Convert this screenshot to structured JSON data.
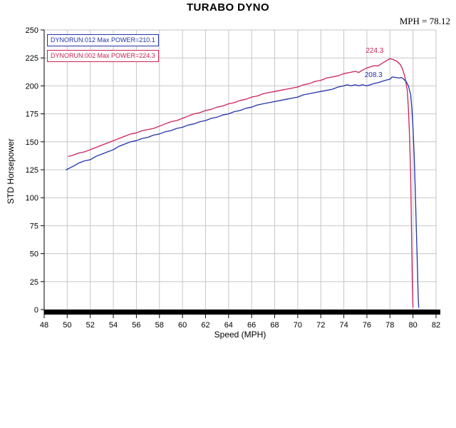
{
  "header": {
    "title": "TURABO DYNO",
    "readout": "MPH = 78.12"
  },
  "chart_data": {
    "type": "line",
    "title": "TURABO DYNO",
    "xlabel": "Speed (MPH)",
    "ylabel": "STD Horsepower",
    "xlim": [
      48,
      82
    ],
    "ylim": [
      0,
      250
    ],
    "x_ticks": [
      48,
      50,
      52,
      54,
      56,
      58,
      60,
      62,
      64,
      66,
      68,
      70,
      72,
      74,
      76,
      78,
      80,
      82
    ],
    "y_ticks": [
      0,
      25,
      50,
      75,
      100,
      125,
      150,
      175,
      200,
      225,
      250
    ],
    "grid": true,
    "grid_color": "#c6c6c6",
    "legend_position": "top-left-inside",
    "series": [
      {
        "name": "DYNORUN.012",
        "label": "DYNORUN.012  Max POWER=210.1",
        "max_power": 210.1,
        "color": "#2233aa",
        "points": [
          [
            49.9,
            125
          ],
          [
            50.5,
            128
          ],
          [
            51,
            131
          ],
          [
            51.5,
            133
          ],
          [
            52,
            134
          ],
          [
            52.5,
            137
          ],
          [
            53,
            139
          ],
          [
            53.5,
            141
          ],
          [
            54,
            143
          ],
          [
            54.5,
            146
          ],
          [
            55,
            148
          ],
          [
            55.5,
            150
          ],
          [
            56,
            151
          ],
          [
            56.5,
            153
          ],
          [
            57,
            154
          ],
          [
            57.5,
            156
          ],
          [
            58,
            157
          ],
          [
            58.5,
            159
          ],
          [
            59,
            160
          ],
          [
            59.5,
            162
          ],
          [
            60,
            163
          ],
          [
            60.5,
            165
          ],
          [
            61,
            166
          ],
          [
            61.5,
            168
          ],
          [
            62,
            169
          ],
          [
            62.5,
            171
          ],
          [
            63,
            172
          ],
          [
            63.5,
            174
          ],
          [
            64,
            175
          ],
          [
            64.5,
            177
          ],
          [
            65,
            178
          ],
          [
            65.5,
            180
          ],
          [
            66,
            181
          ],
          [
            66.5,
            183
          ],
          [
            67,
            184
          ],
          [
            67.5,
            185
          ],
          [
            68,
            186
          ],
          [
            68.5,
            187
          ],
          [
            69,
            188
          ],
          [
            69.5,
            189
          ],
          [
            70,
            190
          ],
          [
            70.5,
            192
          ],
          [
            71,
            193
          ],
          [
            71.5,
            194
          ],
          [
            72,
            195
          ],
          [
            72.5,
            196
          ],
          [
            73,
            197
          ],
          [
            73.5,
            199
          ],
          [
            74,
            200
          ],
          [
            74.3,
            201
          ],
          [
            74.6,
            200
          ],
          [
            75,
            201
          ],
          [
            75.3,
            200
          ],
          [
            75.6,
            201
          ],
          [
            76,
            200
          ],
          [
            76.3,
            201
          ],
          [
            76.6,
            202
          ],
          [
            77,
            203
          ],
          [
            77.3,
            204
          ],
          [
            77.6,
            205
          ],
          [
            78,
            206
          ],
          [
            78.2,
            208
          ],
          [
            78.5,
            207.5
          ],
          [
            78.8,
            207
          ],
          [
            79,
            207.5
          ],
          [
            79.2,
            206
          ],
          [
            79.4,
            204
          ],
          [
            79.6,
            200
          ],
          [
            79.8,
            192
          ],
          [
            79.9,
            180
          ],
          [
            80,
            163
          ],
          [
            80.1,
            138
          ],
          [
            80.2,
            105
          ],
          [
            80.3,
            68
          ],
          [
            80.4,
            32
          ],
          [
            80.45,
            12
          ],
          [
            80.5,
            2
          ]
        ]
      },
      {
        "name": "DYNORUN.002",
        "label": "DYNORUN.002  Max POWER=224.3",
        "max_power": 224.3,
        "color": "#cc2255",
        "points": [
          [
            50.1,
            137
          ],
          [
            50.5,
            138
          ],
          [
            51,
            140
          ],
          [
            51.5,
            141
          ],
          [
            52,
            143
          ],
          [
            52.5,
            145
          ],
          [
            53,
            147
          ],
          [
            53.5,
            149
          ],
          [
            54,
            151
          ],
          [
            54.5,
            153
          ],
          [
            55,
            155
          ],
          [
            55.5,
            157
          ],
          [
            56,
            158
          ],
          [
            56.5,
            160
          ],
          [
            57,
            161
          ],
          [
            57.5,
            162
          ],
          [
            58,
            164
          ],
          [
            58.5,
            166
          ],
          [
            59,
            168
          ],
          [
            59.5,
            169
          ],
          [
            60,
            171
          ],
          [
            60.5,
            173
          ],
          [
            61,
            175
          ],
          [
            61.5,
            176
          ],
          [
            62,
            178
          ],
          [
            62.5,
            179
          ],
          [
            63,
            181
          ],
          [
            63.5,
            182
          ],
          [
            64,
            184
          ],
          [
            64.5,
            185
          ],
          [
            65,
            187
          ],
          [
            65.5,
            188
          ],
          [
            66,
            190
          ],
          [
            66.5,
            191
          ],
          [
            67,
            193
          ],
          [
            67.5,
            194
          ],
          [
            68,
            195
          ],
          [
            68.5,
            196
          ],
          [
            69,
            197
          ],
          [
            69.5,
            198
          ],
          [
            70,
            199
          ],
          [
            70.5,
            201
          ],
          [
            71,
            202
          ],
          [
            71.5,
            204
          ],
          [
            72,
            205
          ],
          [
            72.5,
            207
          ],
          [
            73,
            208
          ],
          [
            73.5,
            209
          ],
          [
            74,
            211
          ],
          [
            74.5,
            212
          ],
          [
            75,
            213
          ],
          [
            75.3,
            212
          ],
          [
            75.6,
            214
          ],
          [
            76,
            216
          ],
          [
            76.3,
            217
          ],
          [
            76.6,
            218
          ],
          [
            77,
            218
          ],
          [
            77.3,
            220
          ],
          [
            77.6,
            222
          ],
          [
            78,
            224.3
          ],
          [
            78.3,
            223.5
          ],
          [
            78.6,
            222
          ],
          [
            78.9,
            219
          ],
          [
            79.1,
            215
          ],
          [
            79.3,
            208
          ],
          [
            79.5,
            196
          ],
          [
            79.6,
            180
          ],
          [
            79.7,
            155
          ],
          [
            79.8,
            120
          ],
          [
            79.85,
            85
          ],
          [
            79.9,
            50
          ],
          [
            79.95,
            20
          ],
          [
            80,
            2
          ]
        ]
      }
    ],
    "annotations": [
      {
        "text": "224.3",
        "x": 75.9,
        "y": 231,
        "color": "#cc2255"
      },
      {
        "text": "208.3",
        "x": 75.8,
        "y": 209,
        "color": "#2233aa"
      }
    ]
  }
}
